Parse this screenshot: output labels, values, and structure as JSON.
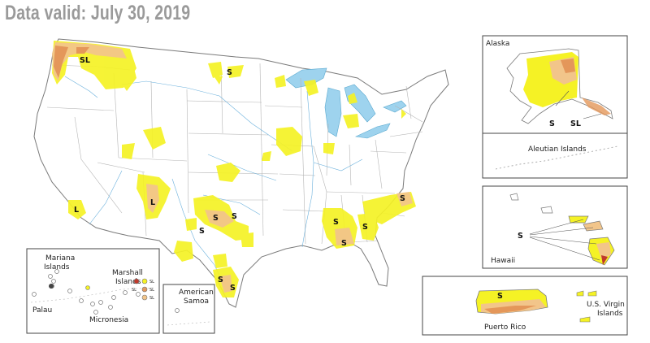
{
  "title": "Data valid: July 30, 2019",
  "colors": {
    "abnormally_dry": "#f5f225",
    "moderate_drought": "#f2c58a",
    "severe_drought": "#e4975a",
    "extreme_drought": "#c0392b",
    "water": "#9ed3ee",
    "border": "#7a7a7a"
  },
  "impact_labels": {
    "S": "S",
    "L": "L",
    "SL": "SL"
  },
  "insets": {
    "alaska": {
      "name": "Alaska",
      "aleutian": "Aleutian Islands"
    },
    "hawaii": {
      "name": "Hawaii"
    },
    "puerto_rico": {
      "name": "Puerto Rico",
      "usvi_line1": "U.S. Virgin",
      "usvi_line2": "Islands"
    },
    "pacific": {
      "mariana_line1": "Mariana",
      "mariana_line2": "Islands",
      "marshall_line1": "Marshall",
      "marshall_line2": "Islands",
      "palau": "Palau",
      "micronesia": "Micronesia"
    },
    "samoa": {
      "line1": "American",
      "line2": "Samoa"
    }
  }
}
